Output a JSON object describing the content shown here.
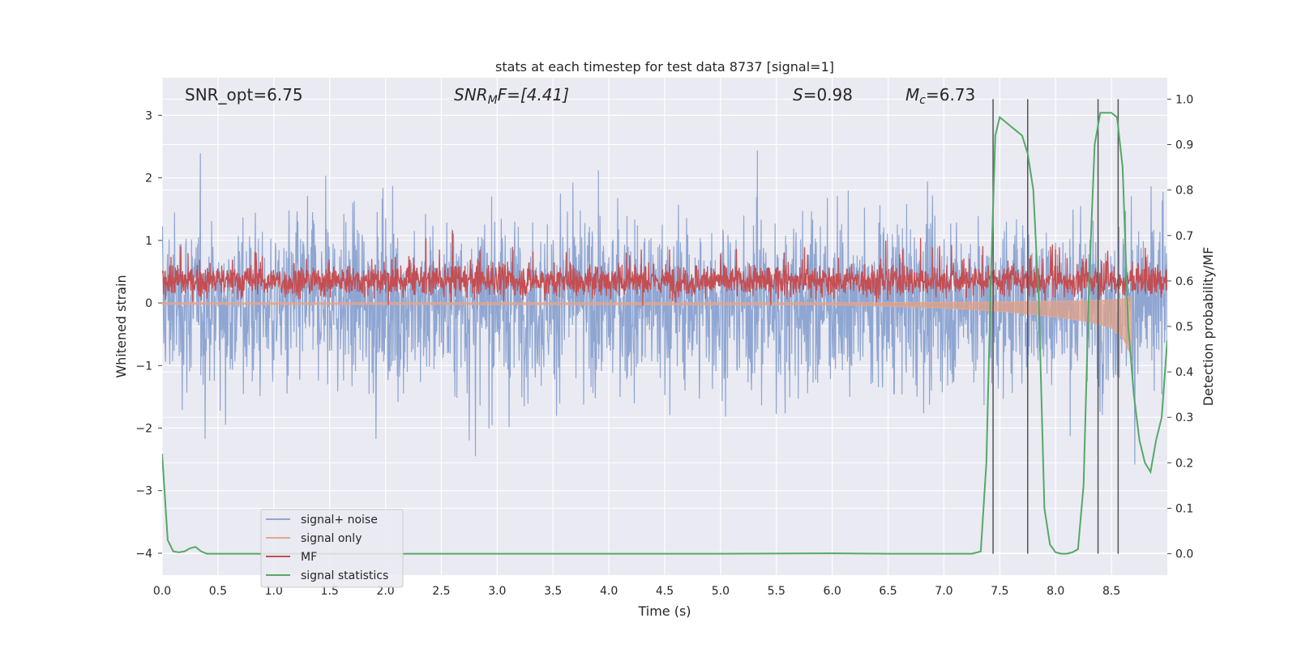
{
  "chart_data": {
    "type": "line",
    "title": "stats at each timestep for test data 8737 [signal=1]",
    "xlabel": "Time (s)",
    "ylabel_left": "Whitened strain",
    "ylabel_right": "Detection probability/MF",
    "xlim": [
      0.0,
      9.0
    ],
    "ylim_left": [
      -4.35,
      3.6
    ],
    "ylim_right": [
      -0.047,
      1.047
    ],
    "grid": true,
    "legend_placement": "lower-left",
    "x_ticks": [
      "0.0",
      "0.5",
      "1.0",
      "1.5",
      "2.0",
      "2.5",
      "3.0",
      "3.5",
      "4.0",
      "4.5",
      "5.0",
      "5.5",
      "6.0",
      "6.5",
      "7.0",
      "7.5",
      "8.0",
      "8.5"
    ],
    "y_ticks_left": [
      "3",
      "2",
      "1",
      "0",
      "−1",
      "−2",
      "−3",
      "−4"
    ],
    "y_ticks_right": [
      "1.0",
      "0.9",
      "0.8",
      "0.7",
      "0.6",
      "0.5",
      "0.4",
      "0.3",
      "0.2",
      "0.1",
      "0.0"
    ],
    "annotations": {
      "snr_opt": "SNR_opt=6.75",
      "snr_mf_main": "SNR",
      "snr_mf_sub": "M",
      "snr_mf_rest": "F=[4.41]",
      "s": "S",
      "s_rest": "=0.98",
      "mc_main": "M",
      "mc_sub": "c",
      "mc_rest": "=6.73"
    },
    "vertical_lines_x": [
      7.44,
      7.75,
      8.38,
      8.56
    ],
    "series": [
      {
        "name": "signal+ noise",
        "color": "#8fa6d2",
        "noise_amplitude_approx": 1.0,
        "peak_range": [
          -3.3,
          3.2
        ]
      },
      {
        "name": "signal only",
        "color": "#e8a78c",
        "y_axis": "left",
        "x": [
          0.0,
          6.0,
          6.5,
          7.0,
          7.5,
          8.0,
          8.3,
          8.5,
          8.6,
          8.68
        ],
        "envelope": [
          0.02,
          0.03,
          0.05,
          0.08,
          0.13,
          0.22,
          0.3,
          0.4,
          0.55,
          0.85
        ]
      },
      {
        "name": "MF",
        "color": "#c44e52",
        "y_axis": "right",
        "baseline": 0.6,
        "range_approx": [
          0.55,
          0.72
        ]
      },
      {
        "name": "signal statistics",
        "color": "#55a868",
        "y_axis": "right",
        "x": [
          0.0,
          0.05,
          0.1,
          0.15,
          0.2,
          0.25,
          0.3,
          0.35,
          0.4,
          0.45,
          0.5,
          1.0,
          2.0,
          3.0,
          4.0,
          5.0,
          6.0,
          6.5,
          7.0,
          7.25,
          7.33,
          7.38,
          7.42,
          7.46,
          7.5,
          7.55,
          7.6,
          7.65,
          7.7,
          7.75,
          7.8,
          7.85,
          7.9,
          7.95,
          8.0,
          8.05,
          8.1,
          8.15,
          8.2,
          8.25,
          8.3,
          8.35,
          8.4,
          8.45,
          8.5,
          8.55,
          8.6,
          8.65,
          8.7,
          8.75,
          8.8,
          8.85,
          8.9,
          8.95,
          9.0
        ],
        "y": [
          0.22,
          0.03,
          0.005,
          0.003,
          0.005,
          0.012,
          0.015,
          0.005,
          0.0,
          0.0,
          0.0,
          0.0,
          0.0,
          0.0,
          0.0,
          0.0,
          0.001,
          0.0,
          0.0,
          0.0,
          0.005,
          0.2,
          0.6,
          0.92,
          0.96,
          0.95,
          0.94,
          0.93,
          0.92,
          0.88,
          0.8,
          0.55,
          0.1,
          0.02,
          0.003,
          0.0,
          0.0,
          0.003,
          0.01,
          0.15,
          0.6,
          0.9,
          0.97,
          0.97,
          0.97,
          0.96,
          0.85,
          0.5,
          0.35,
          0.25,
          0.2,
          0.18,
          0.25,
          0.3,
          0.47
        ]
      }
    ]
  }
}
